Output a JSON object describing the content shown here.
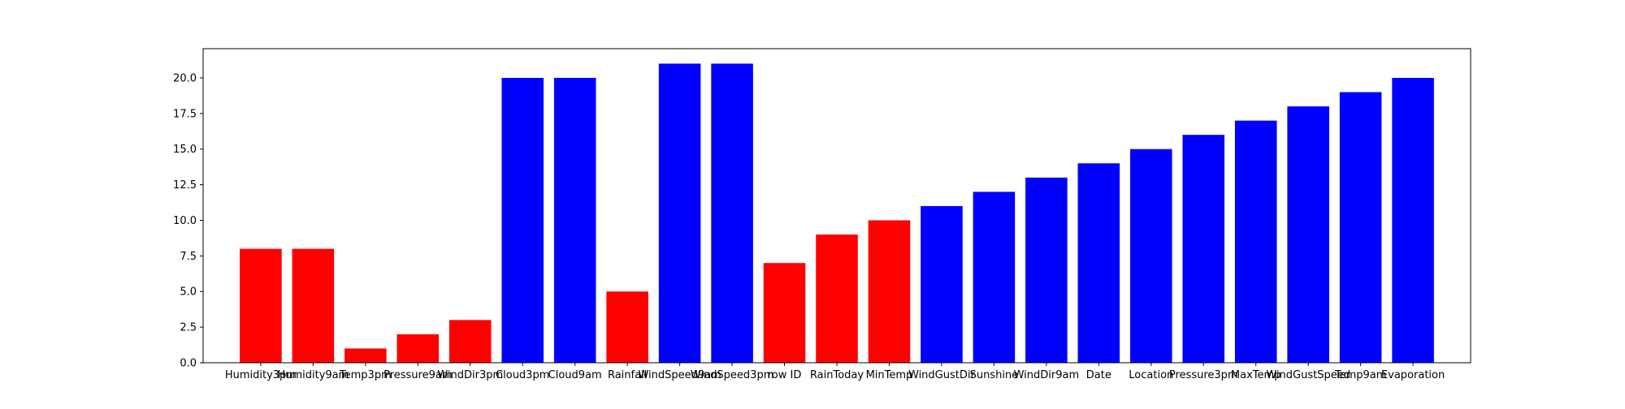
{
  "chart_data": {
    "type": "bar",
    "categories": [
      "Humidity3pm",
      "Humidity9am",
      "Temp3pm",
      "Pressure9am",
      "WindDir3pm",
      "Cloud3pm",
      "Cloud9am",
      "Rainfall",
      "WindSpeed9am",
      "WindSpeed3pm",
      "row ID",
      "RainToday",
      "MinTemp",
      "WindGustDir",
      "Sunshine",
      "WindDir9am",
      "Date",
      "Location",
      "Pressure3pm",
      "MaxTemp",
      "WindGustSpeed",
      "Temp9am",
      "Evaporation"
    ],
    "values": [
      8,
      8,
      1,
      2,
      3,
      20,
      20,
      5,
      21,
      21,
      7,
      9,
      10,
      11,
      12,
      13,
      14,
      15,
      16,
      17,
      18,
      19,
      20
    ],
    "bar_colors": [
      "#ff0000",
      "#ff0000",
      "#ff0000",
      "#ff0000",
      "#ff0000",
      "#0000ff",
      "#0000ff",
      "#ff0000",
      "#0000ff",
      "#0000ff",
      "#ff0000",
      "#ff0000",
      "#ff0000",
      "#0000ff",
      "#0000ff",
      "#0000ff",
      "#0000ff",
      "#0000ff",
      "#0000ff",
      "#0000ff",
      "#0000ff",
      "#0000ff",
      "#0000ff"
    ],
    "yticks": [
      0.0,
      2.5,
      5.0,
      7.5,
      10.0,
      12.5,
      15.0,
      17.5,
      20.0
    ],
    "ytick_labels": [
      "0.0",
      "2.5",
      "5.0",
      "7.5",
      "10.0",
      "12.5",
      "15.0",
      "17.5",
      "20.0"
    ],
    "ylim": [
      0,
      22.05
    ],
    "grid": false,
    "title": "",
    "xlabel": "",
    "ylabel": ""
  }
}
